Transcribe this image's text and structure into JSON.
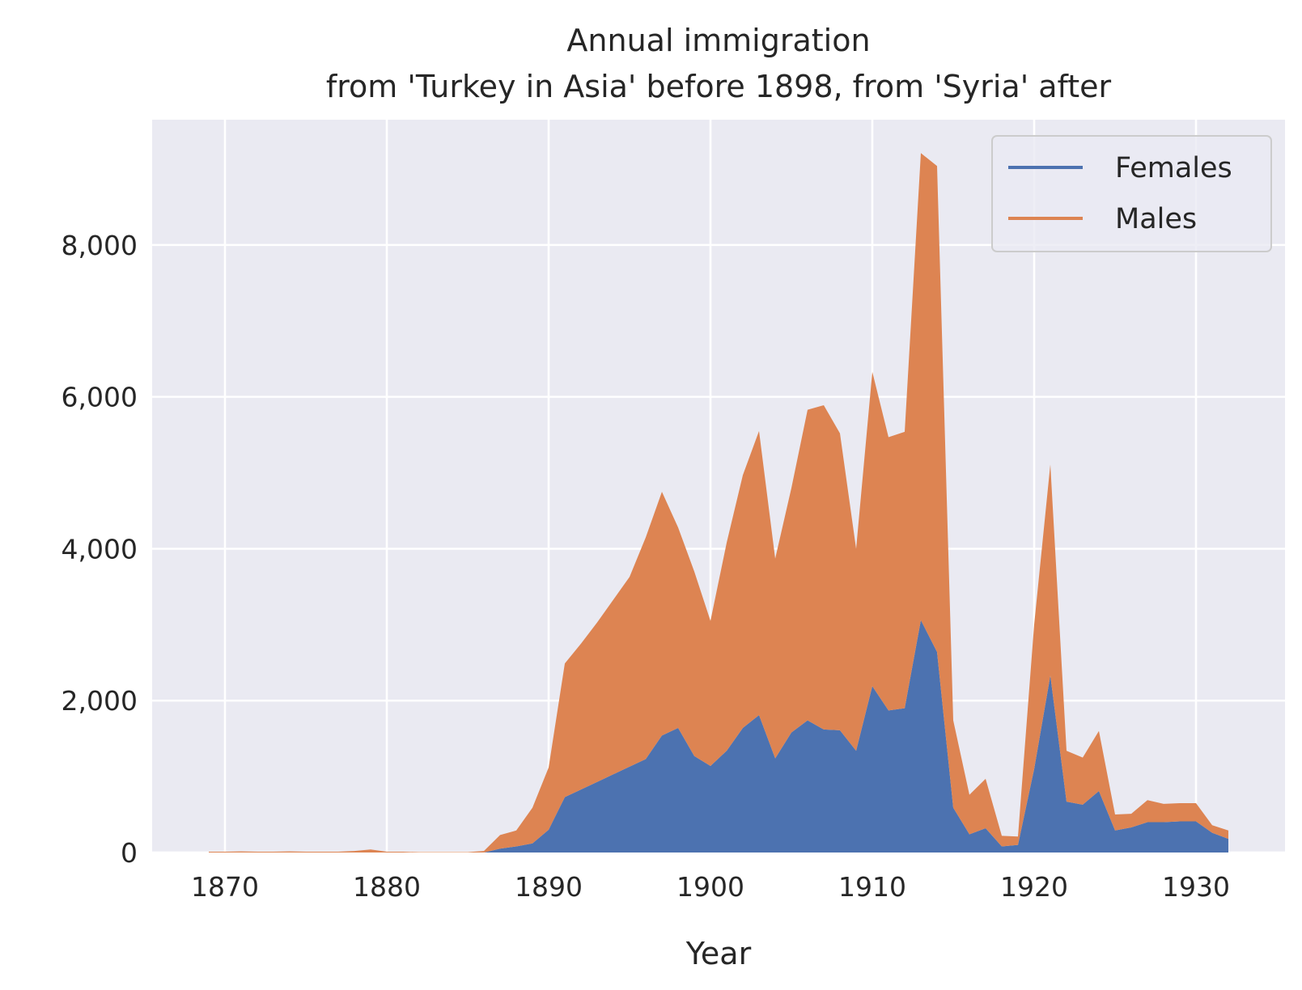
{
  "chart_data": {
    "type": "area",
    "stacked": true,
    "title": "Annual immigration",
    "subtitle": "from 'Turkey in Asia' before 1898, from 'Syria' after",
    "xlabel": "Year",
    "ylabel": "",
    "xlim": [
      1865.5,
      1935.5
    ],
    "ylim": [
      0,
      9650
    ],
    "x_ticks": [
      1870,
      1880,
      1890,
      1900,
      1910,
      1920,
      1930
    ],
    "x_tick_labels": [
      "1870",
      "1880",
      "1890",
      "1900",
      "1910",
      "1920",
      "1930"
    ],
    "y_ticks": [
      0,
      2000,
      4000,
      6000,
      8000
    ],
    "y_tick_labels": [
      "0",
      "2,000",
      "4,000",
      "6,000",
      "8,000"
    ],
    "grid": true,
    "legend_position": "top-right",
    "x": [
      1869,
      1870,
      1871,
      1872,
      1873,
      1874,
      1875,
      1876,
      1877,
      1878,
      1879,
      1880,
      1881,
      1882,
      1883,
      1884,
      1885,
      1886,
      1887,
      1888,
      1889,
      1890,
      1891,
      1892,
      1893,
      1894,
      1895,
      1896,
      1897,
      1898,
      1899,
      1900,
      1901,
      1902,
      1903,
      1904,
      1905,
      1906,
      1907,
      1908,
      1909,
      1910,
      1911,
      1912,
      1913,
      1914,
      1915,
      1916,
      1917,
      1918,
      1919,
      1920,
      1921,
      1922,
      1923,
      1924,
      1925,
      1926,
      1927,
      1928,
      1929,
      1930,
      1931,
      1932
    ],
    "series": [
      {
        "name": "Females",
        "color": "#4c72b0",
        "values": [
          0,
          0,
          0,
          0,
          0,
          0,
          0,
          0,
          0,
          0,
          0,
          0,
          0,
          0,
          0,
          0,
          0,
          0,
          50,
          80,
          120,
          300,
          730,
          830,
          930,
          1030,
          1130,
          1230,
          1540,
          1640,
          1270,
          1140,
          1340,
          1640,
          1810,
          1240,
          1580,
          1740,
          1620,
          1610,
          1340,
          2190,
          1870,
          1900,
          3060,
          2640,
          590,
          240,
          320,
          80,
          100,
          1100,
          2330,
          670,
          630,
          810,
          290,
          330,
          400,
          400,
          410,
          410,
          260,
          180
        ]
      },
      {
        "name": "Males",
        "color": "#dd8452",
        "values": [
          10,
          10,
          15,
          10,
          10,
          15,
          10,
          10,
          10,
          20,
          40,
          10,
          10,
          5,
          5,
          5,
          5,
          20,
          180,
          210,
          470,
          820,
          1760,
          1920,
          2100,
          2300,
          2500,
          2920,
          3210,
          2640,
          2430,
          1910,
          2740,
          3330,
          3740,
          2630,
          3220,
          4090,
          4270,
          3910,
          2660,
          4140,
          3600,
          3640,
          6150,
          6400,
          1150,
          520,
          650,
          140,
          110,
          1900,
          2780,
          670,
          620,
          790,
          210,
          180,
          290,
          240,
          240,
          240,
          100,
          110
        ]
      }
    ]
  }
}
